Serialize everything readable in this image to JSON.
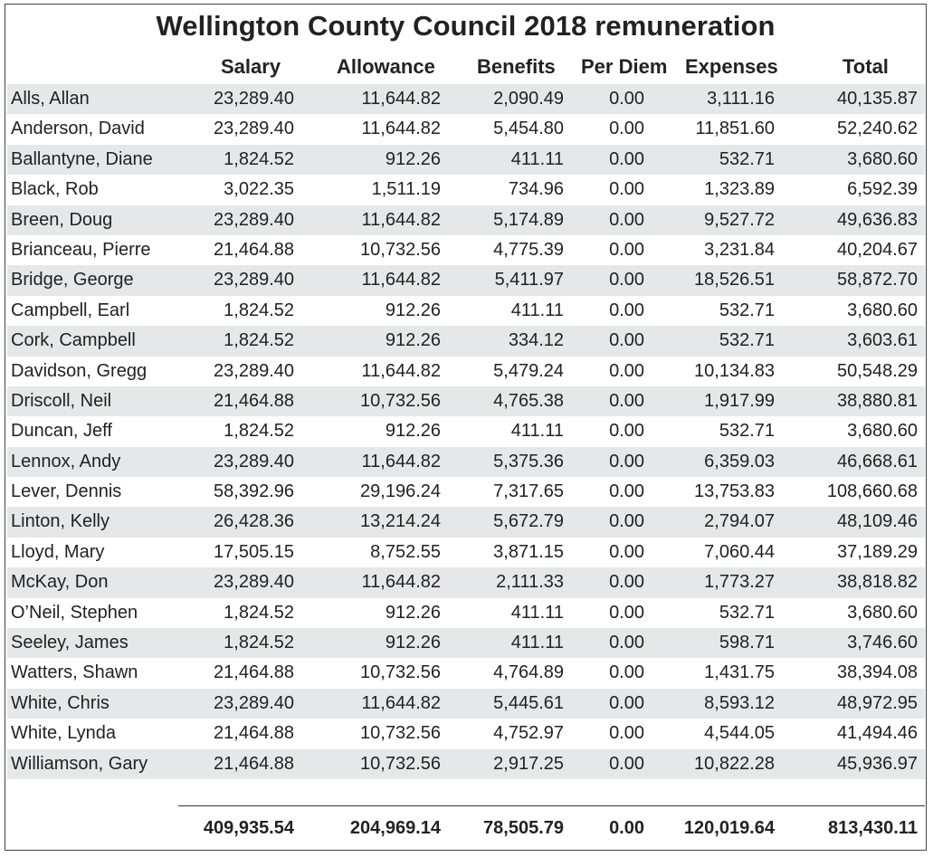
{
  "title": "Wellington County Council 2018 remuneration",
  "columns": [
    "Salary",
    "Allowance",
    "Benefits",
    "Per Diem",
    "Expenses",
    "Total"
  ],
  "rows": [
    {
      "name": "Alls, Allan",
      "salary": "23,289.40",
      "allowance": "11,644.82",
      "benefits": "2,090.49",
      "per_diem": "0.00",
      "expenses": "3,111.16",
      "total": "40,135.87"
    },
    {
      "name": "Anderson, David",
      "salary": "23,289.40",
      "allowance": "11,644.82",
      "benefits": "5,454.80",
      "per_diem": "0.00",
      "expenses": "11,851.60",
      "total": "52,240.62"
    },
    {
      "name": "Ballantyne, Diane",
      "salary": "1,824.52",
      "allowance": "912.26",
      "benefits": "411.11",
      "per_diem": "0.00",
      "expenses": "532.71",
      "total": "3,680.60"
    },
    {
      "name": "Black, Rob",
      "salary": "3,022.35",
      "allowance": "1,511.19",
      "benefits": "734.96",
      "per_diem": "0.00",
      "expenses": "1,323.89",
      "total": "6,592.39"
    },
    {
      "name": "Breen, Doug",
      "salary": "23,289.40",
      "allowance": "11,644.82",
      "benefits": "5,174.89",
      "per_diem": "0.00",
      "expenses": "9,527.72",
      "total": "49,636.83"
    },
    {
      "name": "Brianceau, Pierre",
      "salary": "21,464.88",
      "allowance": "10,732.56",
      "benefits": "4,775.39",
      "per_diem": "0.00",
      "expenses": "3,231.84",
      "total": "40,204.67"
    },
    {
      "name": "Bridge, George",
      "salary": "23,289.40",
      "allowance": "11,644.82",
      "benefits": "5,411.97",
      "per_diem": "0.00",
      "expenses": "18,526.51",
      "total": "58,872.70"
    },
    {
      "name": "Campbell, Earl",
      "salary": "1,824.52",
      "allowance": "912.26",
      "benefits": "411.11",
      "per_diem": "0.00",
      "expenses": "532.71",
      "total": "3,680.60"
    },
    {
      "name": "Cork, Campbell",
      "salary": "1,824.52",
      "allowance": "912.26",
      "benefits": "334.12",
      "per_diem": "0.00",
      "expenses": "532.71",
      "total": "3,603.61"
    },
    {
      "name": "Davidson, Gregg",
      "salary": "23,289.40",
      "allowance": "11,644.82",
      "benefits": "5,479.24",
      "per_diem": "0.00",
      "expenses": "10,134.83",
      "total": "50,548.29"
    },
    {
      "name": "Driscoll, Neil",
      "salary": "21,464.88",
      "allowance": "10,732.56",
      "benefits": "4,765.38",
      "per_diem": "0.00",
      "expenses": "1,917.99",
      "total": "38,880.81"
    },
    {
      "name": "Duncan, Jeff",
      "salary": "1,824.52",
      "allowance": "912.26",
      "benefits": "411.11",
      "per_diem": "0.00",
      "expenses": "532.71",
      "total": "3,680.60"
    },
    {
      "name": "Lennox, Andy",
      "salary": "23,289.40",
      "allowance": "11,644.82",
      "benefits": "5,375.36",
      "per_diem": "0.00",
      "expenses": "6,359.03",
      "total": "46,668.61"
    },
    {
      "name": "Lever, Dennis",
      "salary": "58,392.96",
      "allowance": "29,196.24",
      "benefits": "7,317.65",
      "per_diem": "0.00",
      "expenses": "13,753.83",
      "total": "108,660.68"
    },
    {
      "name": "Linton, Kelly",
      "salary": "26,428.36",
      "allowance": "13,214.24",
      "benefits": "5,672.79",
      "per_diem": "0.00",
      "expenses": "2,794.07",
      "total": "48,109.46"
    },
    {
      "name": "Lloyd, Mary",
      "salary": "17,505.15",
      "allowance": "8,752.55",
      "benefits": "3,871.15",
      "per_diem": "0.00",
      "expenses": "7,060.44",
      "total": "37,189.29"
    },
    {
      "name": "McKay, Don",
      "salary": "23,289.40",
      "allowance": "11,644.82",
      "benefits": "2,111.33",
      "per_diem": "0.00",
      "expenses": "1,773.27",
      "total": "38,818.82"
    },
    {
      "name": "O’Neil, Stephen",
      "salary": "1,824.52",
      "allowance": "912.26",
      "benefits": "411.11",
      "per_diem": "0.00",
      "expenses": "532.71",
      "total": "3,680.60"
    },
    {
      "name": "Seeley, James",
      "salary": "1,824.52",
      "allowance": "912.26",
      "benefits": "411.11",
      "per_diem": "0.00",
      "expenses": "598.71",
      "total": "3,746.60"
    },
    {
      "name": "Watters, Shawn",
      "salary": "21,464.88",
      "allowance": "10,732.56",
      "benefits": "4,764.89",
      "per_diem": "0.00",
      "expenses": "1,431.75",
      "total": "38,394.08"
    },
    {
      "name": "White, Chris",
      "salary": "23,289.40",
      "allowance": "11,644.82",
      "benefits": "5,445.61",
      "per_diem": "0.00",
      "expenses": "8,593.12",
      "total": "48,972.95"
    },
    {
      "name": "White, Lynda",
      "salary": "21,464.88",
      "allowance": "10,732.56",
      "benefits": "4,752.97",
      "per_diem": "0.00",
      "expenses": "4,544.05",
      "total": "41,494.46"
    },
    {
      "name": "Williamson, Gary",
      "salary": "21,464.88",
      "allowance": "10,732.56",
      "benefits": "2,917.25",
      "per_diem": "0.00",
      "expenses": "10,822.28",
      "total": "45,936.97"
    }
  ],
  "totals": {
    "salary": "409,935.54",
    "allowance": "204,969.14",
    "benefits": "78,505.79",
    "per_diem": "0.00",
    "expenses": "120,019.64",
    "total": "813,430.11"
  },
  "colors": {
    "row_shade": "#e6e7e8",
    "text": "#222222",
    "border": "#444444"
  }
}
